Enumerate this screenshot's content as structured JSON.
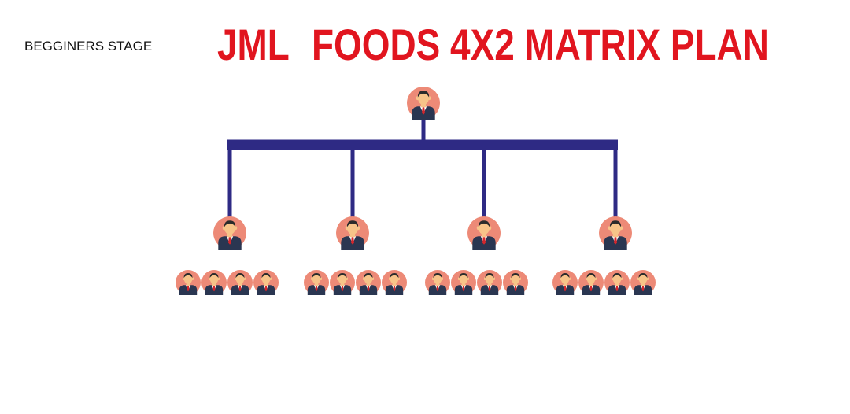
{
  "header": {
    "stage_label": "BEGGINERS STAGE",
    "title_brand": "JML",
    "title_rest": "FOODS 4X2 MATRIX PLAN"
  },
  "colors": {
    "title": "#e1151f",
    "connector": "#2e2a84",
    "avatar_bg": "#ed8a77",
    "suit": "#2a3651",
    "skin": "#f7c489",
    "hair": "#2b2b2b",
    "tie": "#d6262b"
  },
  "structure": {
    "root_count": 1,
    "level1_count": 4,
    "level2_per_parent": 4
  },
  "icons": {
    "member": "businessman-avatar-icon"
  }
}
